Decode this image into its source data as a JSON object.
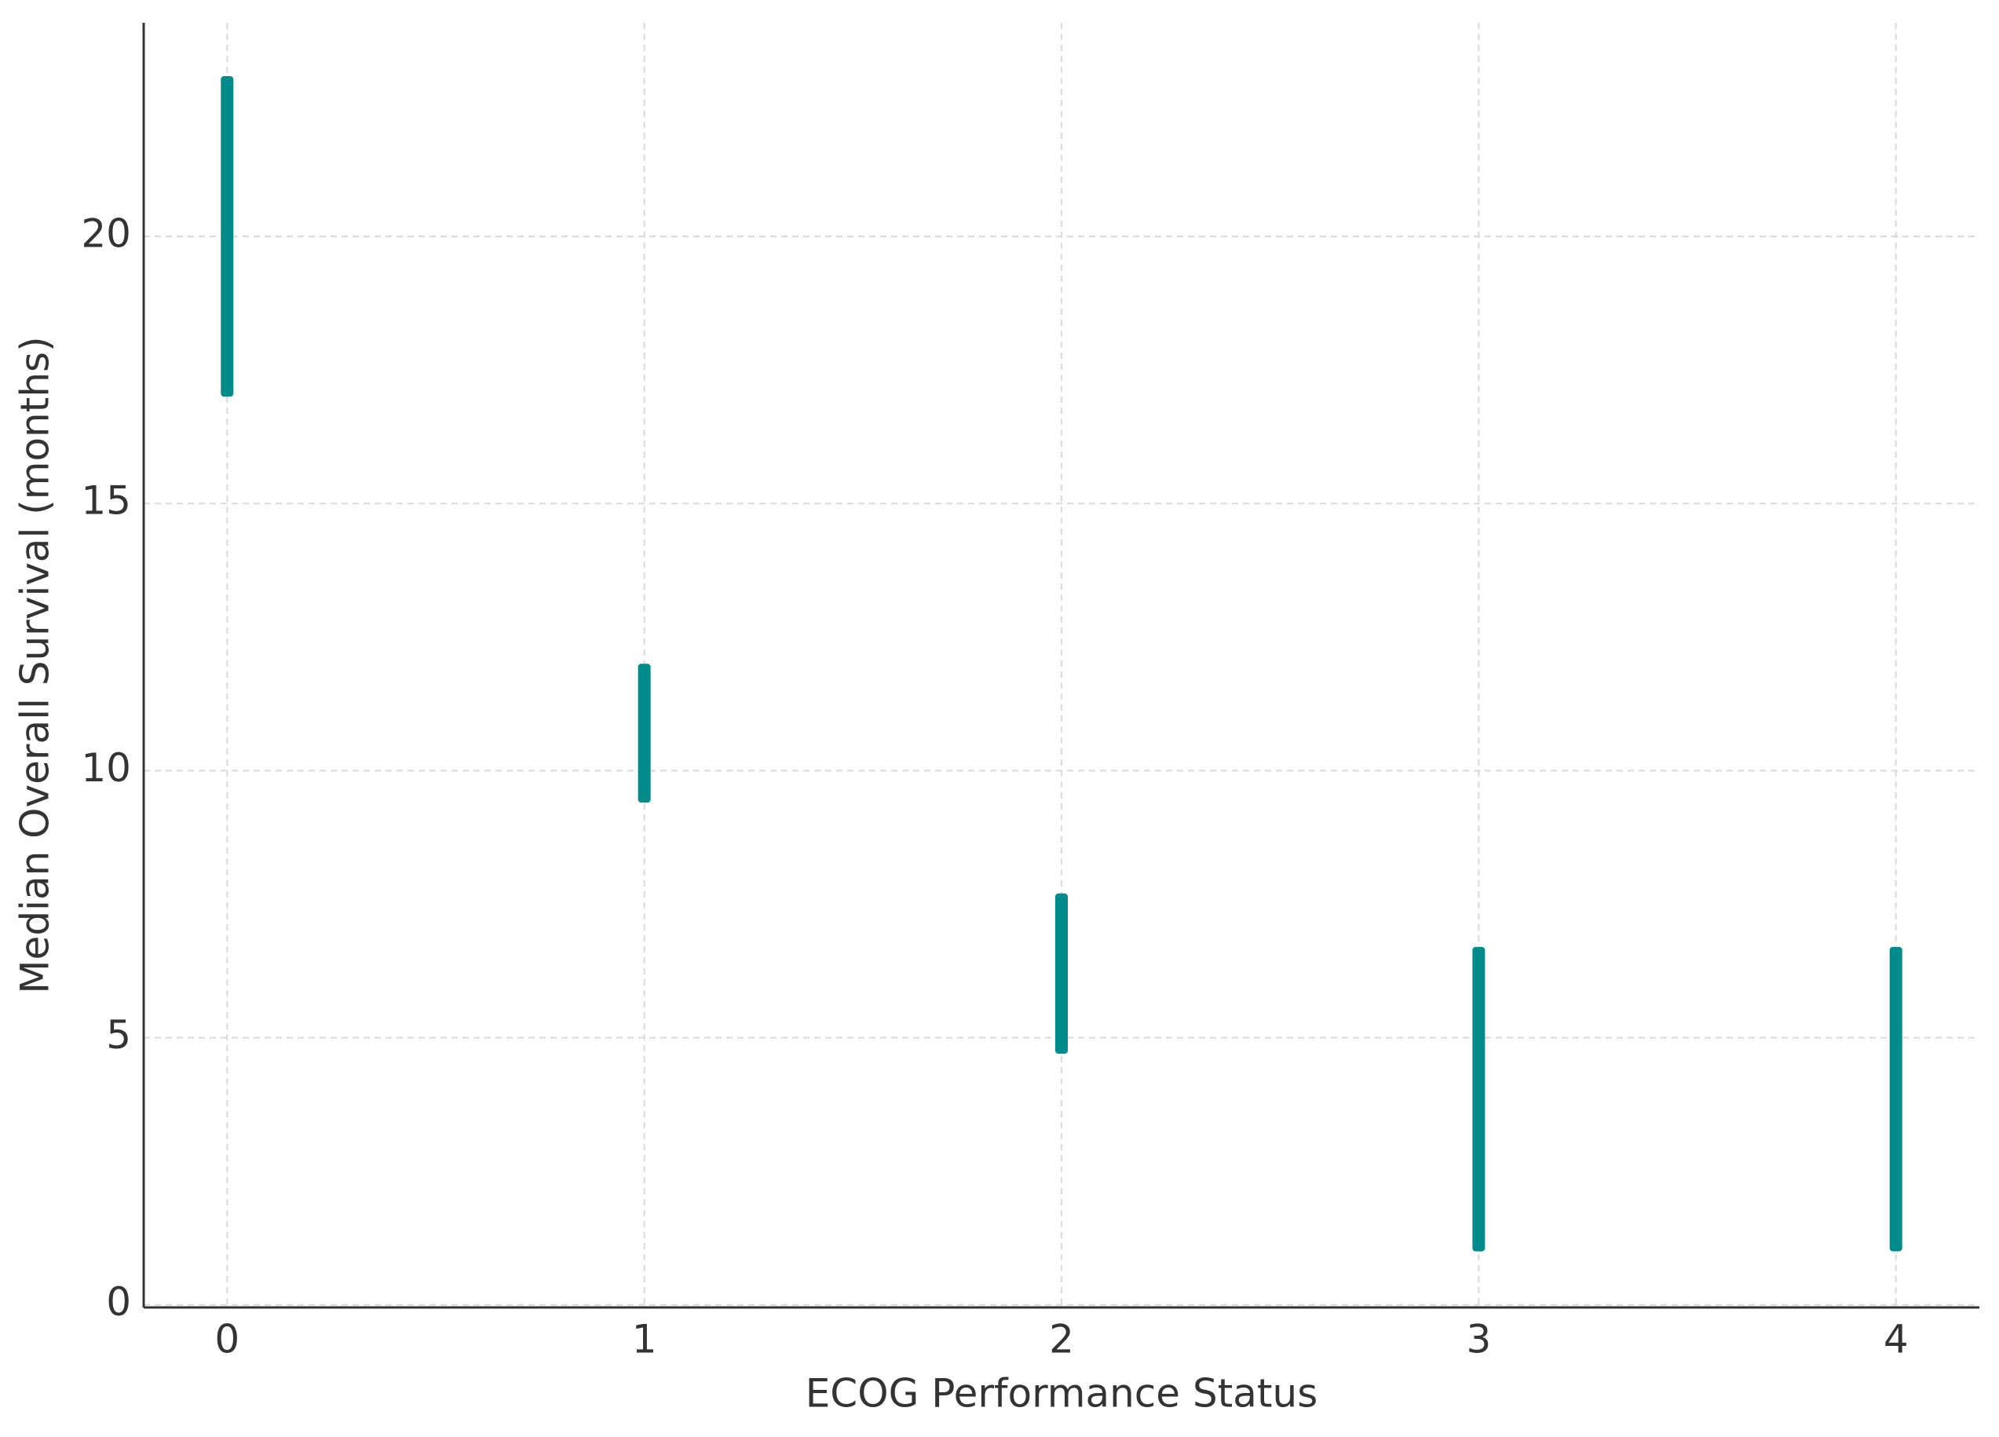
{
  "chart_data": {
    "type": "range",
    "x_label": "ECOG Performance Status",
    "y_label": "Median Overall Survival (months)",
    "x": [
      0,
      1,
      2,
      3,
      4
    ],
    "low": [
      17,
      9.4,
      4.7,
      1.0,
      1.0
    ],
    "high": [
      23,
      12,
      7.7,
      6.7,
      6.7
    ],
    "color": "#008b8b",
    "xlim": [
      -0.2,
      4.2
    ],
    "xticks": [
      0,
      1,
      2,
      3,
      4
    ],
    "ylim": [
      -0.05,
      24
    ],
    "yticks": [
      0,
      5,
      10,
      15,
      20
    ],
    "grid": true
  }
}
